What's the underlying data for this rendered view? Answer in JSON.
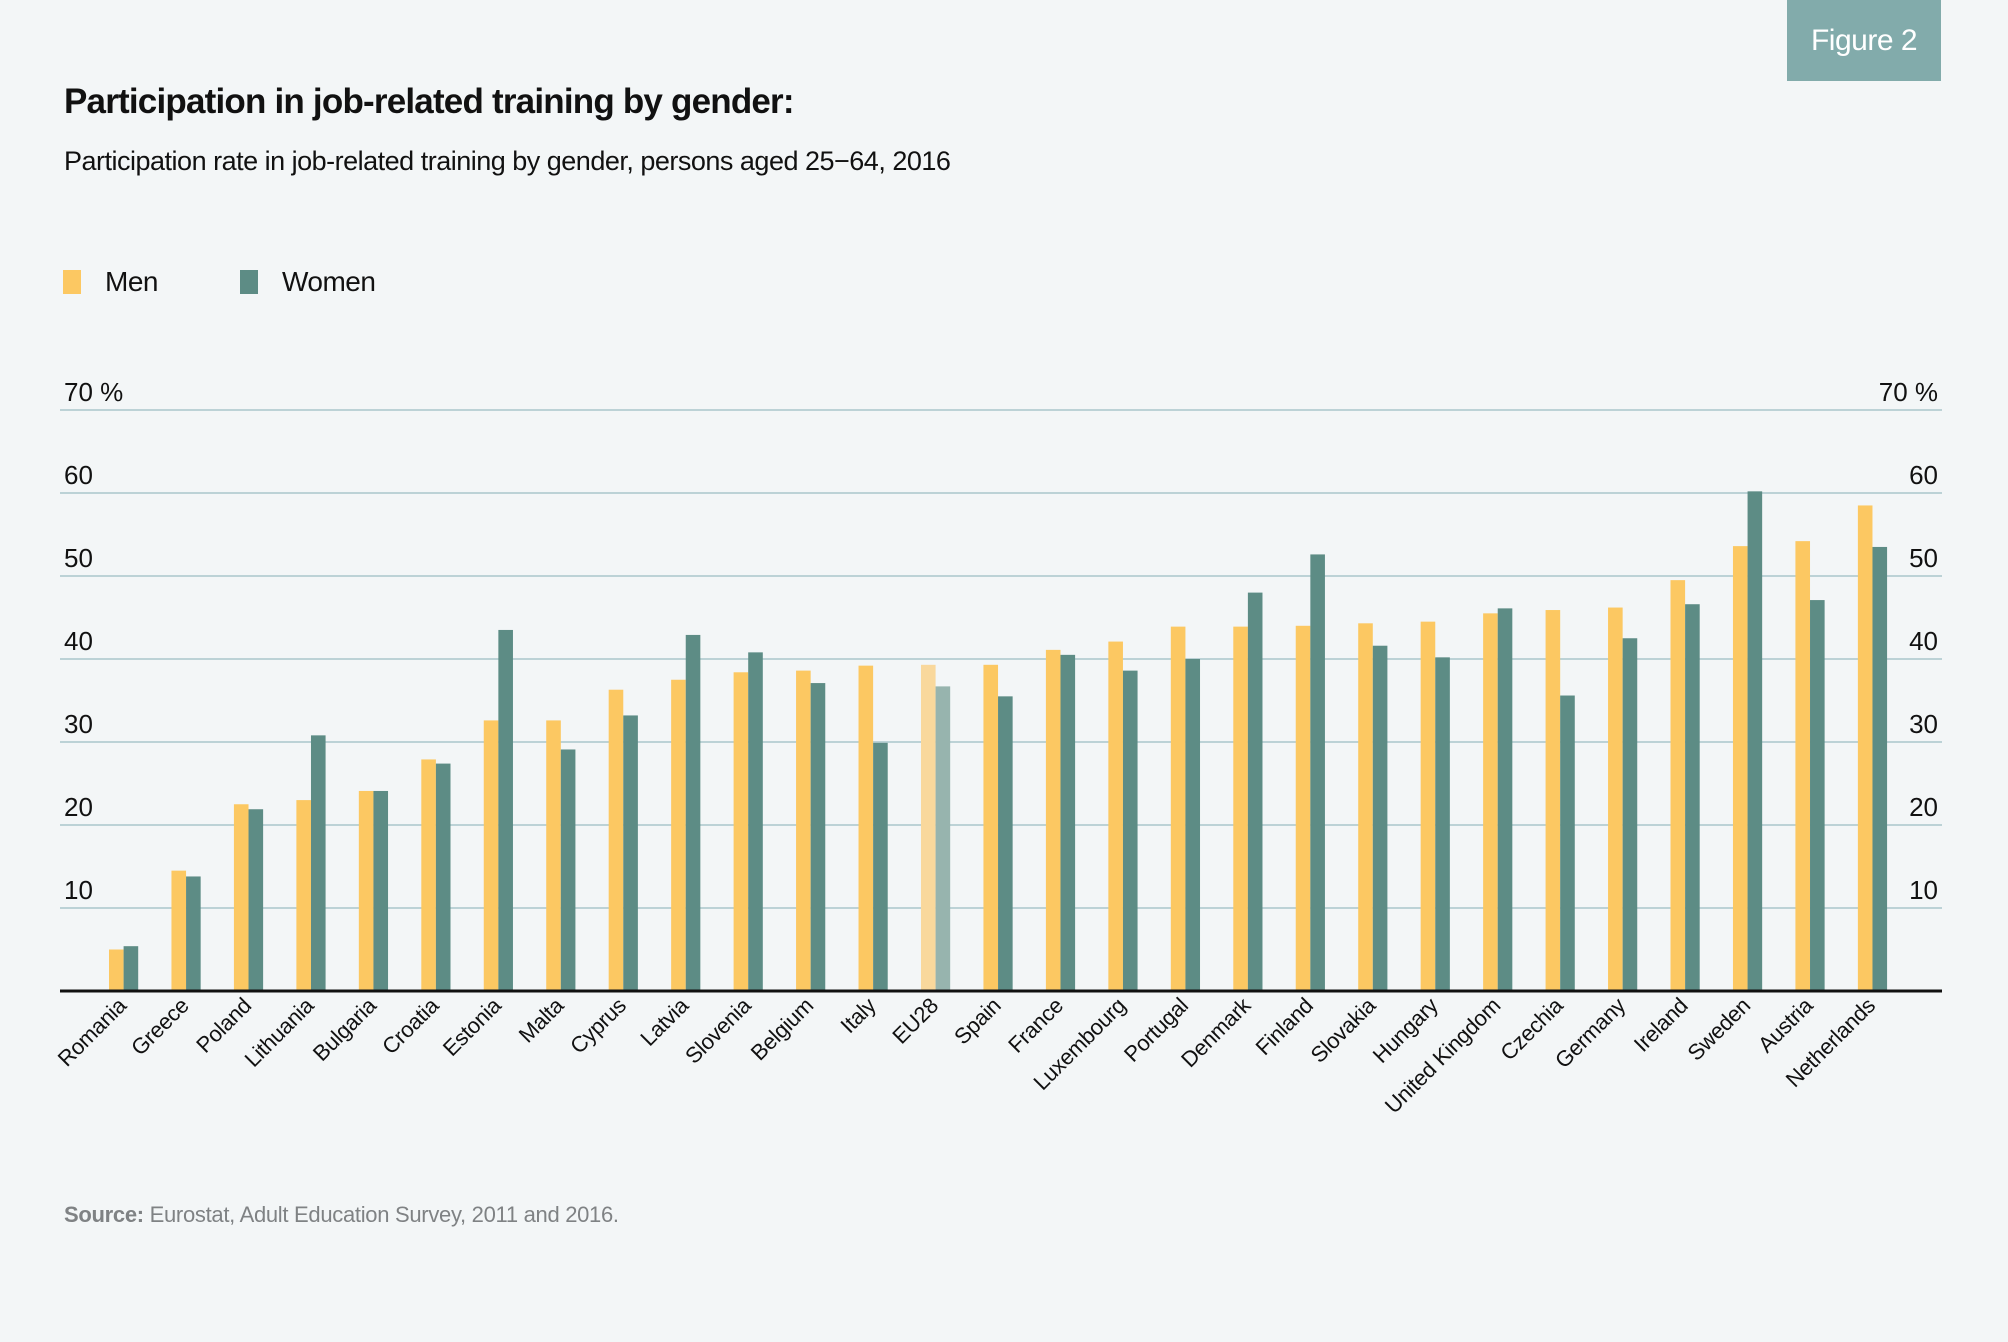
{
  "figure_badge": "Figure 2",
  "title": "Participation in job-related training by gender:",
  "subtitle": "Participation rate in job-related training by gender, persons aged 25−64, 2016",
  "legend": [
    {
      "label": "Men",
      "color": "#FCC862"
    },
    {
      "label": "Women",
      "color": "#5D8C85"
    }
  ],
  "source": {
    "label": "Source:",
    "text": "Eurostat, Adult Education Survey, 2011 and 2016."
  },
  "colors": {
    "men": "#FCC862",
    "women": "#5D8C85",
    "men_highlight": "#F9D89C",
    "women_highlight": "#97B4AE",
    "highlight_label": "#0E5C5E",
    "gridline": "#A9C6CC",
    "axis": "#111111"
  },
  "chart_data": {
    "type": "bar",
    "title": "Participation in job-related training by gender:",
    "subtitle": "Participation rate in job-related training by gender, persons aged 25−64, 2016",
    "xlabel": "",
    "ylabel": "%",
    "ylim": [
      0,
      70
    ],
    "yticks": [
      10,
      20,
      30,
      40,
      50,
      60,
      70
    ],
    "ytick_labels": [
      "10",
      "20",
      "30",
      "40",
      "50",
      "60",
      "70 %"
    ],
    "y_axis_sides": [
      "left",
      "right"
    ],
    "grid": true,
    "legend_position": "top-left",
    "highlight_category": "EU28",
    "categories": [
      "Romania",
      "Greece",
      "Poland",
      "Lithuania",
      "Bulgaria",
      "Croatia",
      "Estonia",
      "Malta",
      "Cyprus",
      "Latvia",
      "Slovenia",
      "Belgium",
      "Italy",
      "EU28",
      "Spain",
      "France",
      "Luxembourg",
      "Portugal",
      "Denmark",
      "Finland",
      "Slovakia",
      "Hungary",
      "United Kingdom",
      "Czechia",
      "Germany",
      "Ireland",
      "Sweden",
      "Austria",
      "Netherlands"
    ],
    "series": [
      {
        "name": "Men",
        "values": [
          5.0,
          14.5,
          22.5,
          23.0,
          24.1,
          27.9,
          32.6,
          32.6,
          36.3,
          37.5,
          38.4,
          38.6,
          39.2,
          39.3,
          39.3,
          41.1,
          42.1,
          43.9,
          43.9,
          44.0,
          44.3,
          44.5,
          45.5,
          45.9,
          46.2,
          49.5,
          53.6,
          54.2,
          58.5
        ]
      },
      {
        "name": "Women",
        "values": [
          5.4,
          13.8,
          21.9,
          30.8,
          24.1,
          27.4,
          43.5,
          29.1,
          33.2,
          42.9,
          40.8,
          37.1,
          29.9,
          36.7,
          35.5,
          40.5,
          38.6,
          40.0,
          48.0,
          52.6,
          41.6,
          40.2,
          46.1,
          35.6,
          42.5,
          46.6,
          60.2,
          47.1,
          53.5
        ]
      }
    ]
  }
}
